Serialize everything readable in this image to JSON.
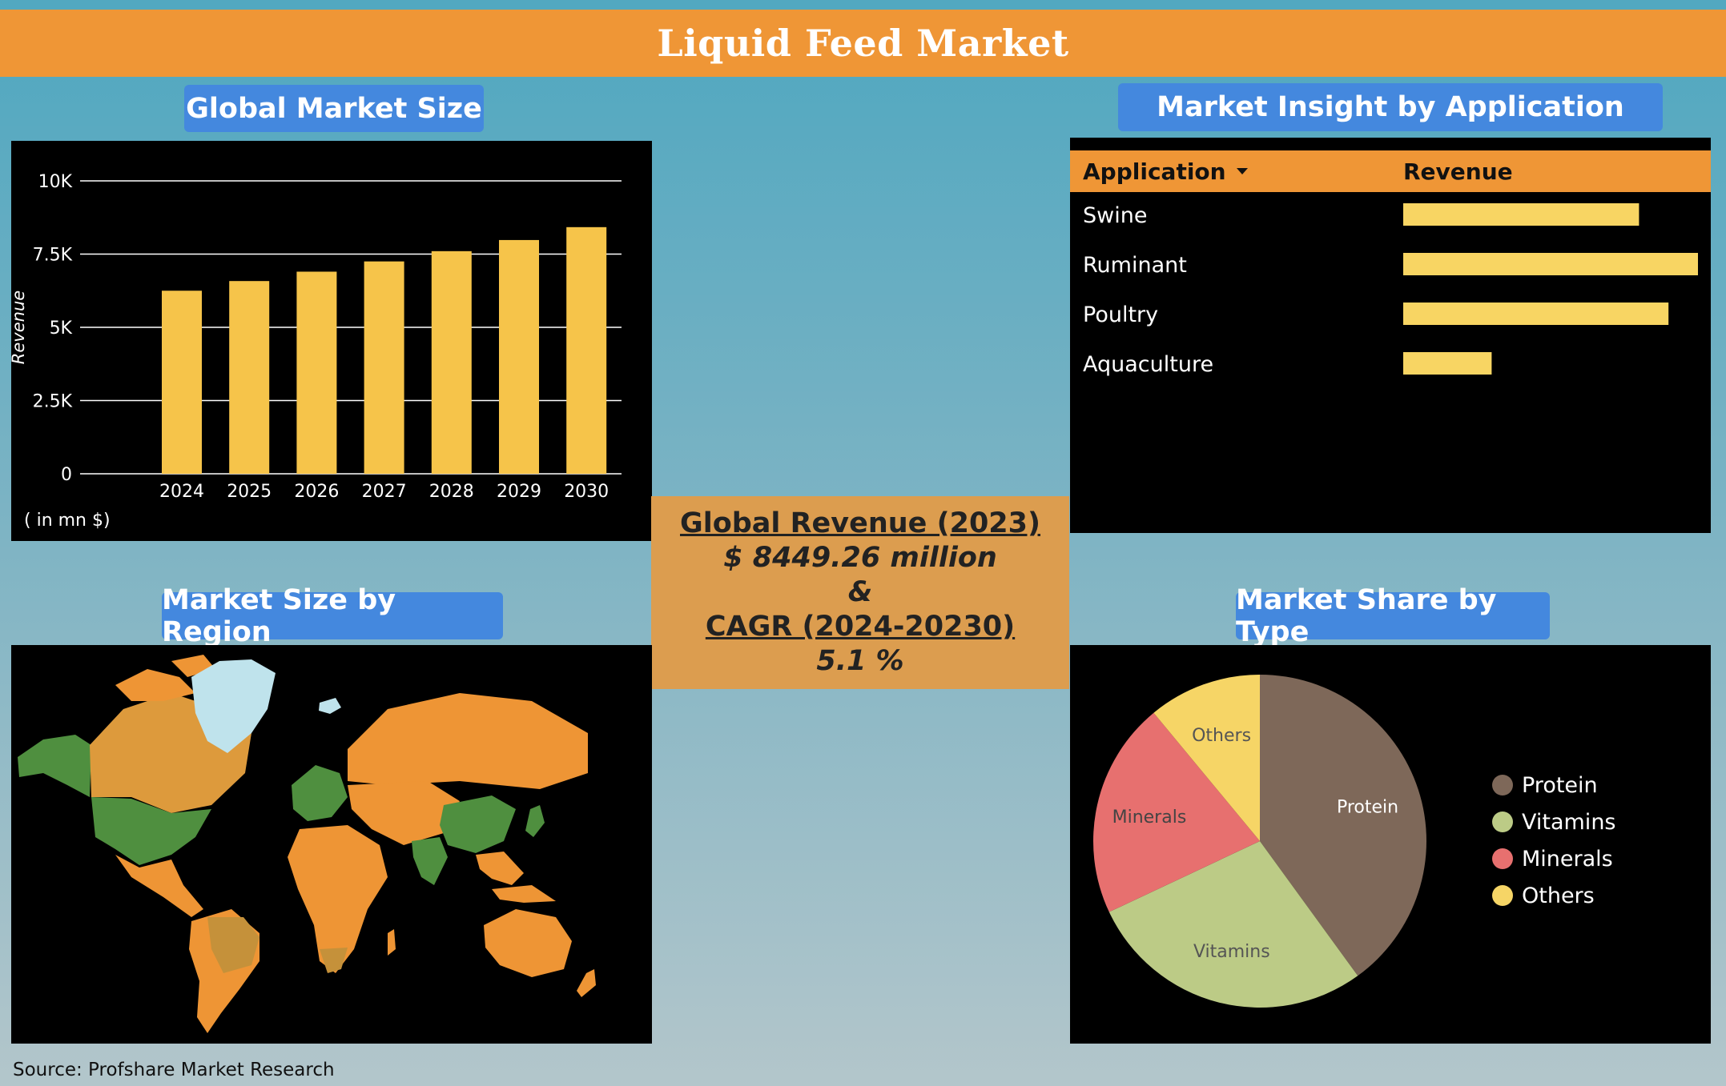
{
  "title": "Liquid Feed Market",
  "sections": {
    "market_size": "Global Market Size",
    "application": "Market Insight by Application",
    "region": "Market Size by Region",
    "type": "Market Share by Type"
  },
  "revenue_box": {
    "heading": "Global Revenue (2023)",
    "value": "$ 8449.26 million",
    "amp": "&",
    "cagr_heading": "CAGR (2024-20230)",
    "cagr_value": "5.1 %"
  },
  "source": "Source: Profshare Market Research",
  "colors": {
    "banner": "#ef9636",
    "pill": "#4488de",
    "bar": "#f6c44a",
    "table_header": "#ef9636",
    "app_bar": "#f8d563",
    "region_orange": "#ee9535",
    "region_green": "#4f8f3f",
    "greenland": "#bfe3ec"
  },
  "table": {
    "col_application": "Application",
    "col_revenue": "Revenue",
    "sort_icon": "caret-down-icon"
  },
  "chart_data": [
    {
      "type": "bar",
      "title": "",
      "categories": [
        "2024",
        "2025",
        "2026",
        "2027",
        "2028",
        "2029",
        "2030"
      ],
      "values": [
        6250,
        6580,
        6900,
        7250,
        7600,
        7980,
        8420
      ],
      "ylabel": "Revenue",
      "unit_note": "( in mn $)",
      "ylim": [
        0,
        10000
      ],
      "yticks": [
        0,
        2500,
        5000,
        7500,
        10000
      ],
      "ytick_labels": [
        "0",
        "2.5K",
        "5K",
        "7.5K",
        "10K"
      ],
      "grid": true
    },
    {
      "type": "bar",
      "orientation": "horizontal",
      "categories": [
        "Swine",
        "Ruminant",
        "Poultry",
        "Aquaculture"
      ],
      "values": [
        0.8,
        1.0,
        0.9,
        0.3
      ],
      "grid": false
    },
    {
      "type": "pie",
      "labels": [
        "Protein",
        "Vitamins",
        "Minerals",
        "Others"
      ],
      "values": [
        40,
        28,
        21,
        11
      ],
      "colors": [
        "#7e6859",
        "#bccb86",
        "#e7706f",
        "#f6d566"
      ],
      "legend": "right"
    }
  ]
}
